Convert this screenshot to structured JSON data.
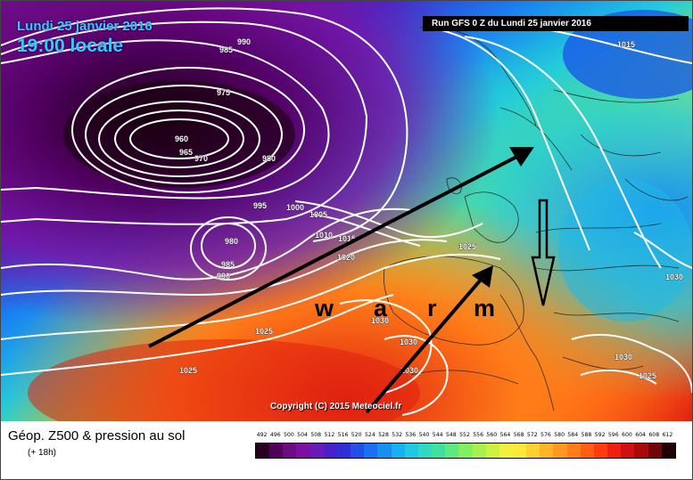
{
  "header": {
    "date": "Lundi 25 janvier 2016",
    "time": "19:00 locale",
    "run": "Run GFS 0 Z du Lundi 25 janvier 2016"
  },
  "isobars": [
    "990",
    "985",
    "975",
    "960",
    "965",
    "970",
    "980",
    "995",
    "1000",
    "1005",
    "1010",
    "1015",
    "1020",
    "1025",
    "980",
    "985",
    "990",
    "1030",
    "1030",
    "1030",
    "1030",
    "1025",
    "1015",
    "1025",
    "1025"
  ],
  "annotation": {
    "letters": [
      "w",
      "a",
      "r",
      "m"
    ]
  },
  "copyright": "Copyright (C) 2015 Meteociel.fr",
  "legend": {
    "title": "Géop. Z500 & pression au sol",
    "subtitle": "(+ 18h)",
    "scale_values": [
      "492",
      "496",
      "500",
      "504",
      "508",
      "512",
      "516",
      "520",
      "524",
      "528",
      "532",
      "536",
      "540",
      "544",
      "548",
      "552",
      "556",
      "560",
      "564",
      "568",
      "572",
      "576",
      "580",
      "584",
      "588",
      "592",
      "596",
      "600",
      "604",
      "608",
      "612"
    ],
    "scale_colors": [
      "#2a0020",
      "#50005a",
      "#6e0a82",
      "#7d10a0",
      "#6a1ab8",
      "#4a20c8",
      "#2f2fd8",
      "#2050e8",
      "#1a70f0",
      "#1890f0",
      "#18b0f0",
      "#20c8e0",
      "#30d8c0",
      "#40e0a0",
      "#60e880",
      "#80f060",
      "#a8f050",
      "#d0f040",
      "#f0f040",
      "#ffe838",
      "#ffd030",
      "#ffb428",
      "#ff9820",
      "#ff7c18",
      "#ff5c14",
      "#ff3c10",
      "#f02010",
      "#d01010",
      "#a80a0a",
      "#700606",
      "#200000"
    ]
  }
}
